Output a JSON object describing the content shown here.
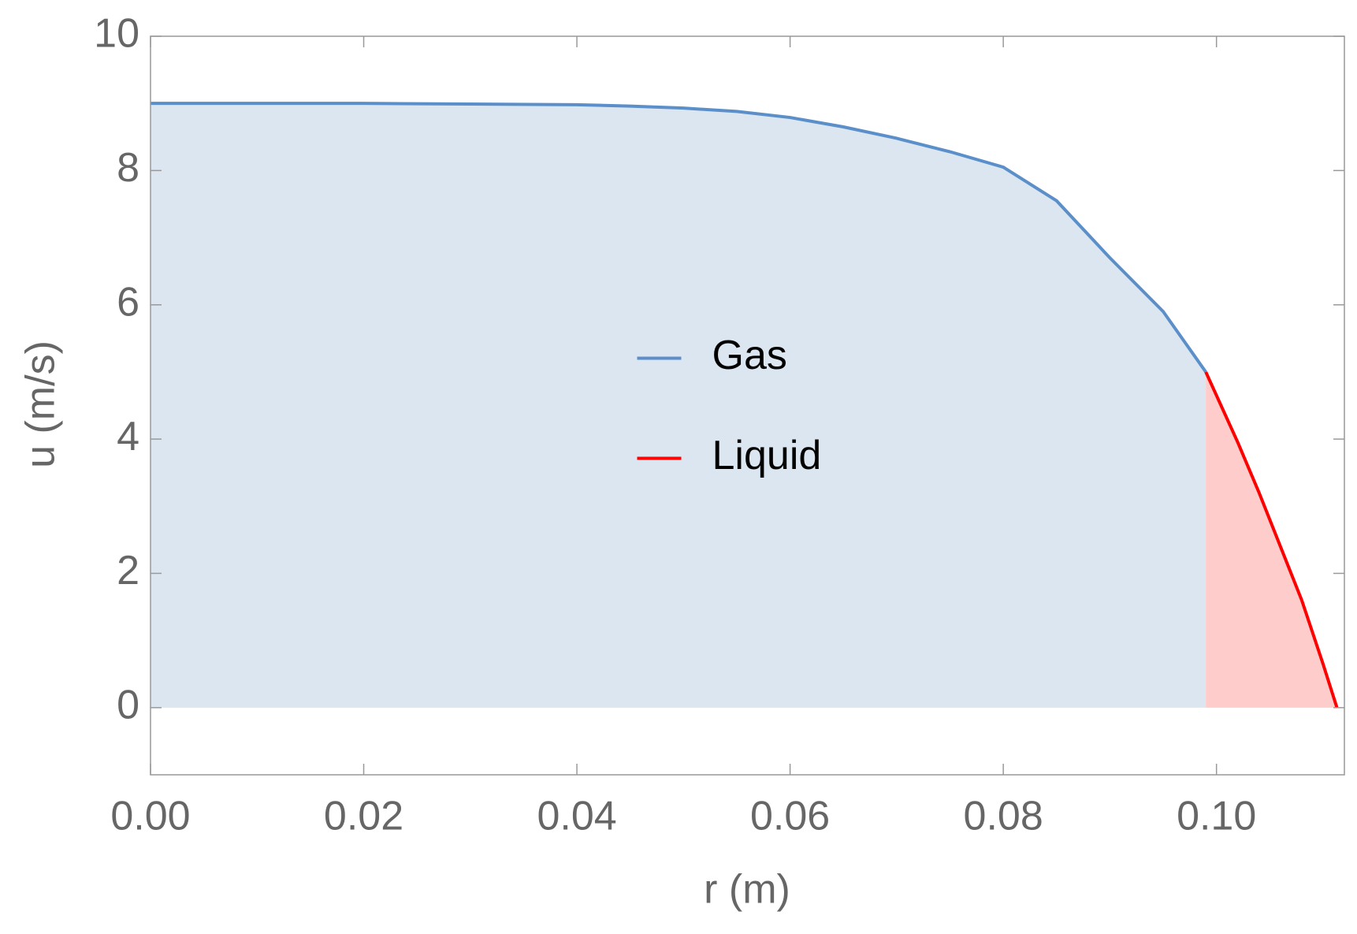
{
  "chart_data": {
    "type": "line",
    "x_label": "r (m)",
    "y_label": "u (m/s)",
    "series": [
      {
        "name": "Gas",
        "color": "#5b8fc9",
        "fill_color": "#dce6f1",
        "x": [
          0,
          0.01,
          0.02,
          0.03,
          0.04,
          0.045,
          0.05,
          0.055,
          0.06,
          0.065,
          0.07,
          0.075,
          0.08,
          0.085,
          0.09,
          0.095,
          0.099
        ],
        "values": [
          9,
          9,
          9,
          8.99,
          8.98,
          8.96,
          8.93,
          8.88,
          8.79,
          8.65,
          8.48,
          8.28,
          8.05,
          7.55,
          6.7,
          5.9,
          5.0
        ]
      },
      {
        "name": "Liquid",
        "color": "#ff0000",
        "fill_color": "#ffcccc",
        "x": [
          0.099,
          0.1,
          0.102,
          0.104,
          0.106,
          0.108,
          0.11,
          0.1113
        ],
        "values": [
          5.0,
          4.65,
          3.95,
          3.2,
          2.4,
          1.6,
          0.65,
          0
        ]
      }
    ],
    "fill_to_zero": true,
    "xlim": [
      0,
      0.112
    ],
    "ylim": [
      -1,
      10
    ],
    "xticks": [
      {
        "value": 0,
        "label": "0.00"
      },
      {
        "value": 0.02,
        "label": "0.02"
      },
      {
        "value": 0.04,
        "label": "0.04"
      },
      {
        "value": 0.06,
        "label": "0.06"
      },
      {
        "value": 0.08,
        "label": "0.08"
      },
      {
        "value": 0.1,
        "label": "0.10"
      }
    ],
    "yticks": [
      0,
      2,
      4,
      6,
      8,
      10
    ],
    "legend": "center",
    "grid": false
  }
}
